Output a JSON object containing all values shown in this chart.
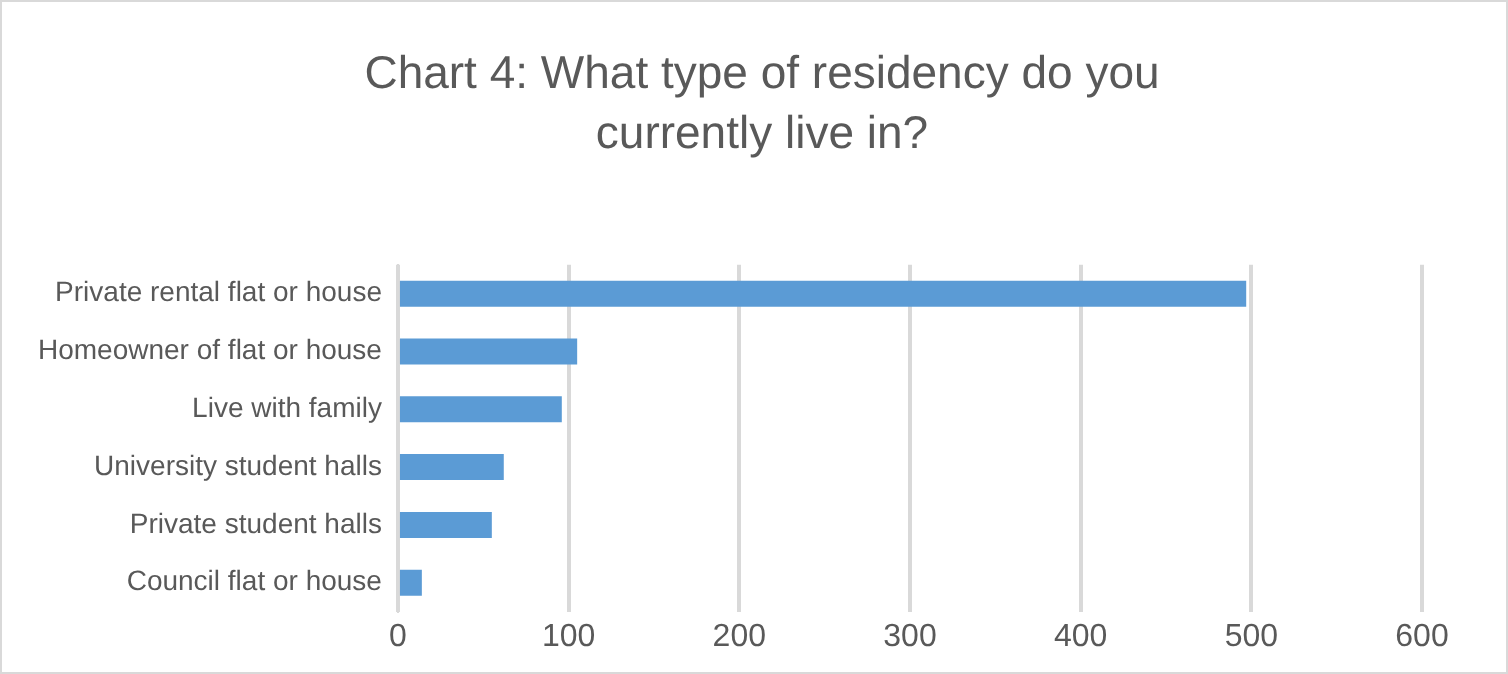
{
  "chart_data": {
    "type": "bar",
    "orientation": "horizontal",
    "title": "Chart 4: What type of residency do you currently live in?",
    "categories": [
      "Private rental flat or house",
      "Homeowner of flat or house",
      "Live with family",
      "University student halls",
      "Private student halls",
      "Council flat or house"
    ],
    "values": [
      497,
      105,
      96,
      62,
      55,
      14
    ],
    "color": "#5b9bd5",
    "xlim": [
      0,
      600
    ],
    "xticks": [
      0,
      100,
      200,
      300,
      400,
      500,
      600
    ],
    "grid": "x"
  }
}
